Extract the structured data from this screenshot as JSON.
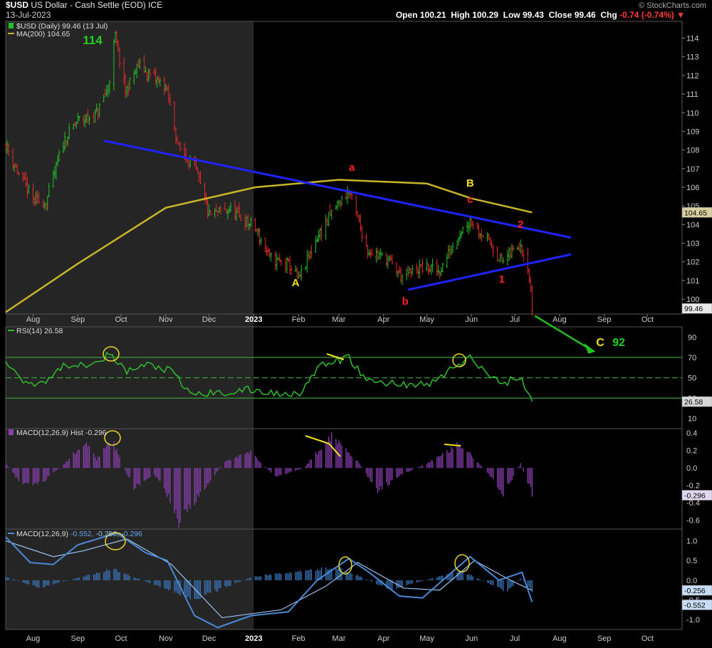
{
  "header": {
    "symbol": "$USD",
    "name": "US Dollar - Cash Settle (EOD)",
    "exchange": "ICE",
    "date": "13-Jul-2023",
    "watermark": "© StockCharts.com",
    "open_label": "Open",
    "open": "100.21",
    "high_label": "High",
    "high": "100.29",
    "low_label": "Low",
    "low": "99.43",
    "close_label": "Close",
    "close": "99.46",
    "chg_label": "Chg",
    "chg": "-0.74 (-0.74%)"
  },
  "legend": {
    "price": "$USD (Daily) 99.46 (13 Jul)",
    "ma": "MA(200) 104.65",
    "rsi": "RSI(14) 26.58",
    "hist": "MACD(12,26,9) Hist -0.296",
    "macd_prefix": "MACD(12,26,9)",
    "macd_v1": "-0.552",
    "macd_v2": "-0.256",
    "macd_v3": "-0.296"
  },
  "annotations": {
    "big_114": "114",
    "A": "A",
    "B": "B",
    "C": "C",
    "c92": "92",
    "a": "a",
    "b": "b",
    "c": "c",
    "w1": "1",
    "w2": "2"
  },
  "colors": {
    "background": "#000000",
    "shade": "#252525",
    "up": "#22c02a",
    "down": "#e62a2a",
    "ma": "#c8b52a",
    "trend": "#1f24ff",
    "rsi": "#2fbe2f",
    "hist": "#8a3fb0",
    "macd": "#4a8ad8",
    "annot_yellow": "#f0e020",
    "annot_red": "#ff2020",
    "annot_green": "#21d021"
  },
  "chart_data": [
    {
      "type": "line",
      "title": "$USD (Daily)",
      "series_kind": "ohlc",
      "x_ticks": [
        "Aug",
        "Sep",
        "Oct",
        "Nov",
        "Dec",
        "2023",
        "Feb",
        "Mar",
        "Apr",
        "May",
        "Jun",
        "Jul",
        "Aug",
        "Sep",
        "Oct"
      ],
      "ylim": [
        99.2,
        114.9
      ],
      "y_ticks": [
        100,
        101,
        102,
        103,
        104,
        105,
        106,
        107,
        108,
        109,
        110,
        111,
        112,
        113,
        114
      ],
      "last_value_tag": "99.46",
      "ma_tag": "104.65",
      "close_path": [
        {
          "x": "2022-07-13",
          "y": 108.3
        },
        {
          "x": "2022-07-22",
          "y": 106.7
        },
        {
          "x": "2022-08-01",
          "y": 105.3
        },
        {
          "x": "2022-08-10",
          "y": 105.2
        },
        {
          "x": "2022-08-22",
          "y": 108.4
        },
        {
          "x": "2022-09-01",
          "y": 109.6
        },
        {
          "x": "2022-09-13",
          "y": 109.8
        },
        {
          "x": "2022-09-22",
          "y": 111.3
        },
        {
          "x": "2022-09-27",
          "y": 114.1
        },
        {
          "x": "2022-10-04",
          "y": 111.1
        },
        {
          "x": "2022-10-13",
          "y": 112.6
        },
        {
          "x": "2022-10-21",
          "y": 112.0
        },
        {
          "x": "2022-11-01",
          "y": 111.4
        },
        {
          "x": "2022-11-10",
          "y": 108.1
        },
        {
          "x": "2022-11-21",
          "y": 107.1
        },
        {
          "x": "2022-12-01",
          "y": 104.5
        },
        {
          "x": "2022-12-15",
          "y": 104.8
        },
        {
          "x": "2023-01-02",
          "y": 103.8
        },
        {
          "x": "2023-01-12",
          "y": 102.2
        },
        {
          "x": "2023-01-26",
          "y": 101.8
        },
        {
          "x": "2023-02-01",
          "y": 101.0
        },
        {
          "x": "2023-02-14",
          "y": 103.3
        },
        {
          "x": "2023-02-27",
          "y": 105.0
        },
        {
          "x": "2023-03-08",
          "y": 105.8
        },
        {
          "x": "2023-03-21",
          "y": 102.6
        },
        {
          "x": "2023-04-03",
          "y": 102.2
        },
        {
          "x": "2023-04-14",
          "y": 101.2
        },
        {
          "x": "2023-04-28",
          "y": 101.7
        },
        {
          "x": "2023-05-10",
          "y": 101.5
        },
        {
          "x": "2023-05-23",
          "y": 103.5
        },
        {
          "x": "2023-05-31",
          "y": 104.3
        },
        {
          "x": "2023-06-14",
          "y": 103.0
        },
        {
          "x": "2023-06-22",
          "y": 102.0
        },
        {
          "x": "2023-07-05",
          "y": 103.0
        },
        {
          "x": "2023-07-10",
          "y": 101.8
        },
        {
          "x": "2023-07-13",
          "y": 99.46
        }
      ],
      "ma200_path": [
        {
          "x": "2022-07-13",
          "y": 99.3
        },
        {
          "x": "2022-09-01",
          "y": 101.9
        },
        {
          "x": "2022-11-01",
          "y": 104.9
        },
        {
          "x": "2023-01-02",
          "y": 106.0
        },
        {
          "x": "2023-03-01",
          "y": 106.4
        },
        {
          "x": "2023-05-01",
          "y": 106.2
        },
        {
          "x": "2023-06-01",
          "y": 105.4
        },
        {
          "x": "2023-07-13",
          "y": 104.65
        }
      ],
      "trendlines": [
        {
          "from": {
            "x": "2022-09-19",
            "y": 108.5
          },
          "to": {
            "x": "2023-08-09",
            "y": 103.3
          }
        },
        {
          "from": {
            "x": "2023-04-18",
            "y": 100.5
          },
          "to": {
            "x": "2023-08-09",
            "y": 102.4
          }
        }
      ],
      "projection": {
        "from": {
          "x": "2023-07-15",
          "y": 99.1
        },
        "to": {
          "x": "2023-08-23",
          "y": 97.3
        },
        "label": "C 92"
      }
    },
    {
      "type": "line",
      "title": "RSI(14)",
      "ylim": [
        0,
        100
      ],
      "y_ticks": [
        10,
        30,
        50,
        70,
        90
      ],
      "reference_lines": [
        30,
        50,
        70
      ],
      "last_value_tag": "26.58",
      "path": [
        {
          "x": "2022-07-13",
          "y": 66
        },
        {
          "x": "2022-07-28",
          "y": 44
        },
        {
          "x": "2022-08-09",
          "y": 47
        },
        {
          "x": "2022-08-24",
          "y": 63
        },
        {
          "x": "2022-09-07",
          "y": 64
        },
        {
          "x": "2022-09-23",
          "y": 72
        },
        {
          "x": "2022-10-05",
          "y": 56
        },
        {
          "x": "2022-10-19",
          "y": 63
        },
        {
          "x": "2022-11-04",
          "y": 57
        },
        {
          "x": "2022-11-18",
          "y": 34
        },
        {
          "x": "2022-12-09",
          "y": 35
        },
        {
          "x": "2022-12-29",
          "y": 38
        },
        {
          "x": "2023-01-19",
          "y": 34
        },
        {
          "x": "2023-02-02",
          "y": 36
        },
        {
          "x": "2023-02-17",
          "y": 62
        },
        {
          "x": "2023-03-08",
          "y": 70
        },
        {
          "x": "2023-03-20",
          "y": 47
        },
        {
          "x": "2023-04-11",
          "y": 44
        },
        {
          "x": "2023-05-03",
          "y": 43
        },
        {
          "x": "2023-05-17",
          "y": 58
        },
        {
          "x": "2023-05-31",
          "y": 69
        },
        {
          "x": "2023-06-21",
          "y": 44
        },
        {
          "x": "2023-07-05",
          "y": 51
        },
        {
          "x": "2023-07-13",
          "y": 26.58
        }
      ]
    },
    {
      "type": "bar",
      "title": "MACD(12,26,9) Hist",
      "ylim": [
        -0.7,
        0.45
      ],
      "y_ticks": [
        -0.6,
        -0.4,
        -0.2,
        0.0,
        0.2,
        0.4
      ],
      "last_value_tag": "-0.296",
      "envelope": [
        {
          "x": "2022-07-13",
          "y": 0.05
        },
        {
          "x": "2022-07-25",
          "y": -0.2
        },
        {
          "x": "2022-08-08",
          "y": -0.15
        },
        {
          "x": "2022-08-23",
          "y": 0.05
        },
        {
          "x": "2022-09-06",
          "y": 0.3
        },
        {
          "x": "2022-09-14",
          "y": 0.1
        },
        {
          "x": "2022-09-24",
          "y": 0.35
        },
        {
          "x": "2022-10-03",
          "y": 0.0
        },
        {
          "x": "2022-10-10",
          "y": -0.22
        },
        {
          "x": "2022-10-24",
          "y": -0.08
        },
        {
          "x": "2022-11-01",
          "y": -0.25
        },
        {
          "x": "2022-11-10",
          "y": -0.6
        },
        {
          "x": "2022-11-25",
          "y": -0.3
        },
        {
          "x": "2022-12-12",
          "y": 0.08
        },
        {
          "x": "2022-12-30",
          "y": 0.18
        },
        {
          "x": "2023-01-16",
          "y": -0.1
        },
        {
          "x": "2023-02-05",
          "y": 0.0
        },
        {
          "x": "2023-02-24",
          "y": 0.38
        },
        {
          "x": "2023-03-14",
          "y": 0.08
        },
        {
          "x": "2023-03-28",
          "y": -0.26
        },
        {
          "x": "2023-04-13",
          "y": -0.08
        },
        {
          "x": "2023-05-01",
          "y": 0.05
        },
        {
          "x": "2023-05-24",
          "y": 0.28
        },
        {
          "x": "2023-06-12",
          "y": -0.05
        },
        {
          "x": "2023-06-23",
          "y": -0.3
        },
        {
          "x": "2023-07-05",
          "y": 0.05
        },
        {
          "x": "2023-07-13",
          "y": -0.296
        }
      ]
    },
    {
      "type": "line",
      "title": "MACD(12,26,9)",
      "ylim": [
        -1.25,
        1.3
      ],
      "y_ticks": [
        -1.0,
        -0.5,
        0.0,
        0.5,
        1.0
      ],
      "last_value_tags": [
        "-0.256",
        "-0.552"
      ],
      "macd_path": [
        {
          "x": "2022-07-13",
          "y": 1.1
        },
        {
          "x": "2022-07-30",
          "y": 0.45
        },
        {
          "x": "2022-08-15",
          "y": 0.4
        },
        {
          "x": "2022-09-01",
          "y": 0.9
        },
        {
          "x": "2022-09-28",
          "y": 1.2
        },
        {
          "x": "2022-10-18",
          "y": 0.7
        },
        {
          "x": "2022-11-02",
          "y": 0.5
        },
        {
          "x": "2022-11-21",
          "y": -0.9
        },
        {
          "x": "2022-12-07",
          "y": -1.2
        },
        {
          "x": "2022-12-30",
          "y": -0.9
        },
        {
          "x": "2023-01-25",
          "y": -0.8
        },
        {
          "x": "2023-02-14",
          "y": 0.0
        },
        {
          "x": "2023-03-08",
          "y": 0.55
        },
        {
          "x": "2023-03-22",
          "y": 0.2
        },
        {
          "x": "2023-04-12",
          "y": -0.4
        },
        {
          "x": "2023-04-28",
          "y": -0.45
        },
        {
          "x": "2023-05-12",
          "y": 0.0
        },
        {
          "x": "2023-05-31",
          "y": 0.6
        },
        {
          "x": "2023-06-20",
          "y": 0.0
        },
        {
          "x": "2023-07-06",
          "y": 0.2
        },
        {
          "x": "2023-07-13",
          "y": -0.552
        }
      ],
      "signal_path": [
        {
          "x": "2022-07-13",
          "y": 1.0
        },
        {
          "x": "2022-08-15",
          "y": 0.6
        },
        {
          "x": "2022-09-05",
          "y": 0.75
        },
        {
          "x": "2022-10-05",
          "y": 1.05
        },
        {
          "x": "2022-11-05",
          "y": 0.4
        },
        {
          "x": "2022-12-10",
          "y": -0.95
        },
        {
          "x": "2023-01-20",
          "y": -0.75
        },
        {
          "x": "2023-02-20",
          "y": -0.15
        },
        {
          "x": "2023-03-14",
          "y": 0.45
        },
        {
          "x": "2023-04-15",
          "y": -0.2
        },
        {
          "x": "2023-05-10",
          "y": -0.25
        },
        {
          "x": "2023-06-03",
          "y": 0.5
        },
        {
          "x": "2023-06-28",
          "y": 0.0
        },
        {
          "x": "2023-07-13",
          "y": -0.256
        }
      ],
      "hist_path": [
        {
          "x": "2022-07-13",
          "y": 0.1
        },
        {
          "x": "2022-08-05",
          "y": -0.2
        },
        {
          "x": "2022-09-25",
          "y": 0.3
        },
        {
          "x": "2022-11-20",
          "y": -0.5
        },
        {
          "x": "2023-01-01",
          "y": 0.1
        },
        {
          "x": "2023-03-01",
          "y": 0.35
        },
        {
          "x": "2023-04-05",
          "y": -0.25
        },
        {
          "x": "2023-05-25",
          "y": 0.25
        },
        {
          "x": "2023-06-25",
          "y": -0.3
        },
        {
          "x": "2023-07-05",
          "y": 0.05
        },
        {
          "x": "2023-07-13",
          "y": -0.296
        }
      ]
    }
  ]
}
